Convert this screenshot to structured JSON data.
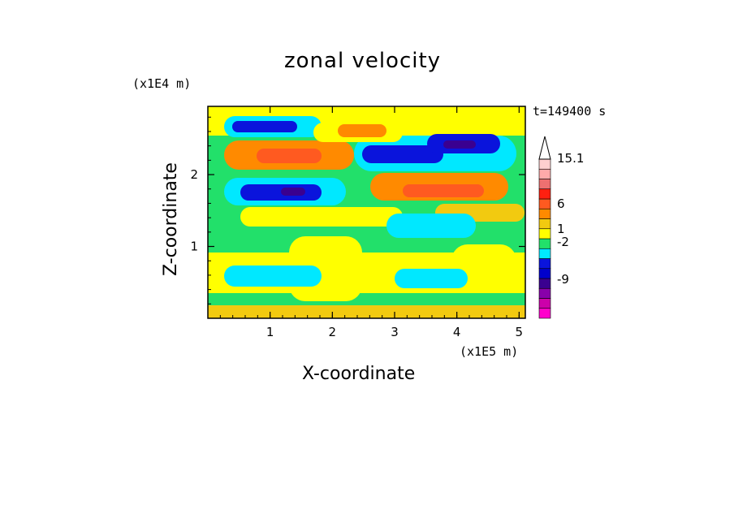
{
  "chart_data": {
    "type": "heatmap",
    "title": "zonal velocity",
    "xlabel": "X-coordinate",
    "ylabel": "Z-coordinate",
    "x_scale_note": "(x1E5 m)",
    "y_scale_note": "(x1E4 m)",
    "time_label": "t=149400 s",
    "xlim": [
      0,
      5.1
    ],
    "ylim": [
      0,
      2.95
    ],
    "xticks": [
      "1",
      "2",
      "3",
      "4",
      "5"
    ],
    "yticks": [
      "1",
      "2"
    ],
    "xtick_values": [
      1,
      2,
      3,
      4,
      5
    ],
    "ytick_values": [
      1,
      2
    ],
    "colorbar": {
      "levels": [
        -9,
        -2,
        1,
        6,
        15.1
      ],
      "labels": [
        "15.1",
        "6",
        "1",
        "-2",
        "-9"
      ],
      "colors": [
        "#ff00cc",
        "#cc00aa",
        "#8800aa",
        "#3a0090",
        "#0000cc",
        "#0a14dc",
        "#00e8ff",
        "#22e06a",
        "#ffff00",
        "#f2ca10",
        "#ff8a00",
        "#ff5a20",
        "#ff2010",
        "#ee7070",
        "#ffaaaa",
        "#ffcfcf"
      ]
    },
    "bands": [
      {
        "z": 2.15,
        "value": -9
      },
      {
        "z": 1.8,
        "value": -9
      },
      {
        "z": 2.3,
        "value": 4
      },
      {
        "z": 1.6,
        "value": 3
      },
      {
        "z": 1.1,
        "value": -2
      },
      {
        "z": 0.35,
        "value": 1
      }
    ]
  }
}
